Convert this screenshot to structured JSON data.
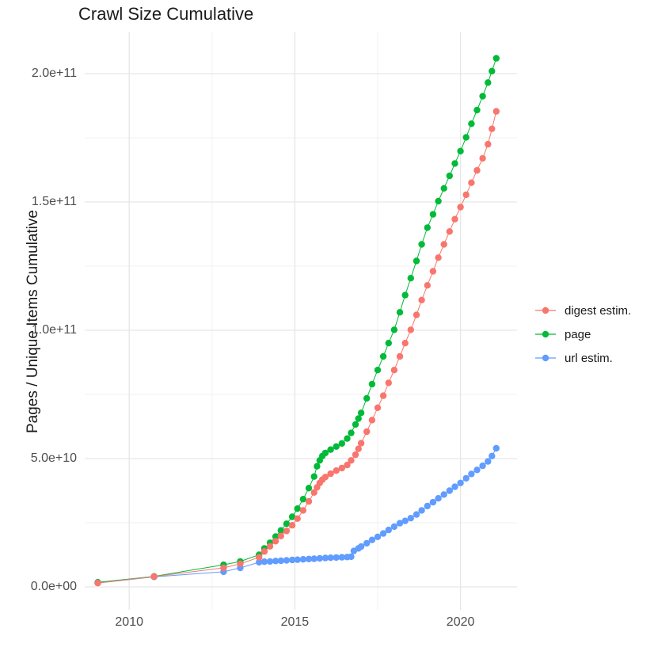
{
  "chart_data": {
    "type": "scatter-line",
    "title": "Crawl Size Cumulative",
    "xlabel": "",
    "ylabel": "Pages / Unique Items Cumulative",
    "unit": "point values given as [year, pages_in_billions(1e9)]",
    "grid": true,
    "legend_position": "right",
    "xlim": [
      2008.5,
      2021.75
    ],
    "ylim_e9": [
      -10,
      215
    ],
    "x_ticks": [
      {
        "label": "2010",
        "year": 2010
      },
      {
        "label": "2015",
        "year": 2015
      },
      {
        "label": "2020",
        "year": 2020
      }
    ],
    "x_minor": [
      2012.5,
      2017.5
    ],
    "y_ticks": [
      {
        "label": "0.0e+00",
        "value_e9": 0
      },
      {
        "label": "5.0e+10",
        "value_e9": 50
      },
      {
        "label": "1.0e+11",
        "value_e9": 100
      },
      {
        "label": "1.5e+11",
        "value_e9": 150
      },
      {
        "label": "2.0e+11",
        "value_e9": 200
      }
    ],
    "y_minor": [
      25,
      75,
      125,
      175
    ],
    "series": [
      {
        "name": "digest estim.",
        "color": "#F8766D",
        "points": [
          [
            2009.05,
            1.5
          ],
          [
            2010.75,
            4.0
          ],
          [
            2012.85,
            7.4
          ],
          [
            2013.35,
            9.0
          ],
          [
            2013.92,
            11.5
          ],
          [
            2014.08,
            13.8
          ],
          [
            2014.25,
            15.8
          ],
          [
            2014.42,
            17.8
          ],
          [
            2014.58,
            19.8
          ],
          [
            2014.75,
            21.8
          ],
          [
            2014.92,
            24.0
          ],
          [
            2015.08,
            26.6
          ],
          [
            2015.25,
            29.8
          ],
          [
            2015.42,
            33.3
          ],
          [
            2015.58,
            36.8
          ],
          [
            2015.67,
            38.8
          ],
          [
            2015.75,
            40.5
          ],
          [
            2015.83,
            41.8
          ],
          [
            2015.92,
            42.8
          ],
          [
            2016.08,
            44.1
          ],
          [
            2016.25,
            45.3
          ],
          [
            2016.42,
            46.3
          ],
          [
            2016.58,
            47.5
          ],
          [
            2016.7,
            49.3
          ],
          [
            2016.83,
            51.5
          ],
          [
            2016.92,
            53.8
          ],
          [
            2017.0,
            56.0
          ],
          [
            2017.17,
            60.5
          ],
          [
            2017.33,
            65.0
          ],
          [
            2017.5,
            69.8
          ],
          [
            2017.67,
            74.5
          ],
          [
            2017.83,
            79.5
          ],
          [
            2018.0,
            84.5
          ],
          [
            2018.17,
            89.8
          ],
          [
            2018.33,
            95.0
          ],
          [
            2018.5,
            100.2
          ],
          [
            2018.67,
            106.0
          ],
          [
            2018.83,
            111.8
          ],
          [
            2019.0,
            117.5
          ],
          [
            2019.17,
            123.0
          ],
          [
            2019.33,
            128.3
          ],
          [
            2019.5,
            133.5
          ],
          [
            2019.67,
            138.5
          ],
          [
            2019.83,
            143.3
          ],
          [
            2020.0,
            148.0
          ],
          [
            2020.17,
            152.8
          ],
          [
            2020.33,
            157.5
          ],
          [
            2020.5,
            162.3
          ],
          [
            2020.67,
            167.0
          ],
          [
            2020.83,
            172.5
          ],
          [
            2020.95,
            178.5
          ],
          [
            2021.08,
            185.3
          ]
        ]
      },
      {
        "name": "page",
        "color": "#00BA38",
        "points": [
          [
            2009.05,
            1.8
          ],
          [
            2010.75,
            4.1
          ],
          [
            2012.85,
            8.6
          ],
          [
            2013.35,
            9.9
          ],
          [
            2013.92,
            12.5
          ],
          [
            2014.08,
            15.0
          ],
          [
            2014.25,
            17.2
          ],
          [
            2014.42,
            19.6
          ],
          [
            2014.58,
            22.0
          ],
          [
            2014.75,
            24.6
          ],
          [
            2014.92,
            27.3
          ],
          [
            2015.08,
            30.5
          ],
          [
            2015.25,
            34.2
          ],
          [
            2015.42,
            38.5
          ],
          [
            2015.58,
            43.0
          ],
          [
            2015.67,
            47.0
          ],
          [
            2015.75,
            49.3
          ],
          [
            2015.83,
            51.0
          ],
          [
            2015.92,
            52.2
          ],
          [
            2016.08,
            53.5
          ],
          [
            2016.25,
            54.7
          ],
          [
            2016.42,
            55.9
          ],
          [
            2016.58,
            57.8
          ],
          [
            2016.7,
            60.0
          ],
          [
            2016.83,
            63.3
          ],
          [
            2016.92,
            65.6
          ],
          [
            2017.0,
            67.8
          ],
          [
            2017.17,
            73.5
          ],
          [
            2017.33,
            79.0
          ],
          [
            2017.5,
            84.5
          ],
          [
            2017.67,
            89.8
          ],
          [
            2017.83,
            95.0
          ],
          [
            2018.0,
            100.2
          ],
          [
            2018.17,
            107.0
          ],
          [
            2018.33,
            113.7
          ],
          [
            2018.5,
            120.3
          ],
          [
            2018.67,
            127.0
          ],
          [
            2018.83,
            133.5
          ],
          [
            2019.0,
            140.0
          ],
          [
            2019.17,
            145.2
          ],
          [
            2019.33,
            150.3
          ],
          [
            2019.5,
            155.3
          ],
          [
            2019.67,
            160.2
          ],
          [
            2019.83,
            165.0
          ],
          [
            2020.0,
            169.8
          ],
          [
            2020.17,
            175.2
          ],
          [
            2020.33,
            180.5
          ],
          [
            2020.5,
            185.8
          ],
          [
            2020.67,
            191.2
          ],
          [
            2020.83,
            196.5
          ],
          [
            2020.95,
            201.0
          ],
          [
            2021.08,
            206.0
          ]
        ]
      },
      {
        "name": "url estim.",
        "color": "#619CFF",
        "points": [
          [
            2009.05,
            1.5
          ],
          [
            2010.75,
            3.9
          ],
          [
            2012.85,
            5.9
          ],
          [
            2013.35,
            7.4
          ],
          [
            2013.92,
            9.6
          ],
          [
            2014.08,
            9.8
          ],
          [
            2014.25,
            9.9
          ],
          [
            2014.42,
            10.1
          ],
          [
            2014.58,
            10.2
          ],
          [
            2014.75,
            10.35
          ],
          [
            2014.92,
            10.5
          ],
          [
            2015.08,
            10.6
          ],
          [
            2015.25,
            10.75
          ],
          [
            2015.42,
            10.85
          ],
          [
            2015.58,
            10.95
          ],
          [
            2015.75,
            11.1
          ],
          [
            2015.92,
            11.25
          ],
          [
            2016.08,
            11.35
          ],
          [
            2016.25,
            11.45
          ],
          [
            2016.42,
            11.55
          ],
          [
            2016.58,
            11.65
          ],
          [
            2016.7,
            11.75
          ],
          [
            2016.78,
            14.0
          ],
          [
            2016.92,
            15.0
          ],
          [
            2017.0,
            15.7
          ],
          [
            2017.17,
            17.0
          ],
          [
            2017.33,
            18.3
          ],
          [
            2017.5,
            19.5
          ],
          [
            2017.67,
            20.8
          ],
          [
            2017.83,
            22.2
          ],
          [
            2018.0,
            23.5
          ],
          [
            2018.17,
            24.8
          ],
          [
            2018.33,
            25.7
          ],
          [
            2018.5,
            26.8
          ],
          [
            2018.67,
            28.2
          ],
          [
            2018.83,
            29.8
          ],
          [
            2019.0,
            31.5
          ],
          [
            2019.17,
            33.0
          ],
          [
            2019.33,
            34.5
          ],
          [
            2019.5,
            36.0
          ],
          [
            2019.67,
            37.5
          ],
          [
            2019.83,
            39.0
          ],
          [
            2020.0,
            40.5
          ],
          [
            2020.17,
            42.3
          ],
          [
            2020.33,
            44.0
          ],
          [
            2020.5,
            45.6
          ],
          [
            2020.67,
            47.2
          ],
          [
            2020.83,
            48.9
          ],
          [
            2020.95,
            51.0
          ],
          [
            2021.08,
            54.0
          ]
        ]
      }
    ]
  }
}
